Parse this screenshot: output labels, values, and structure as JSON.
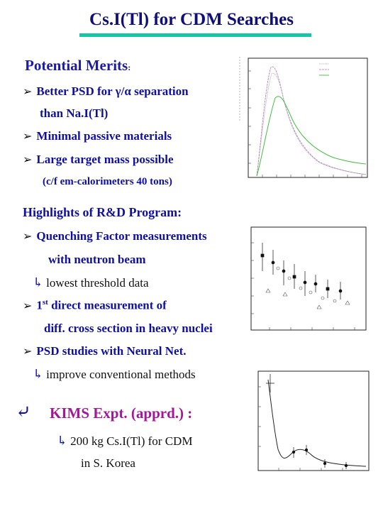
{
  "title": "Cs.I(Tl) for CDM Searches",
  "merits_heading": "Potential Merits",
  "merits_colon": ":",
  "merits": [
    {
      "line1_a": "Better PSD for ",
      "line1_b": "γ/α",
      "line1_c": " separation",
      "line2": "than Na.I(Tl)"
    },
    {
      "line1": "Minimal passive materials"
    },
    {
      "line1": "Large target mass possible",
      "line2": "(c/f  em-calorimeters 40 tons)"
    }
  ],
  "highlights_heading": "Highlights of R&D Program:",
  "highlights": {
    "qf_line1": "Quenching Factor measurements",
    "qf_line2": "with neutron beam",
    "qf_sub": "lowest threshold data",
    "direct_num": "1",
    "direct_sup": "st",
    "direct_line1": " direct measurement of",
    "direct_line2": "diff. cross section in heavy nuclei",
    "psd_line": "PSD studies with Neural Net.",
    "psd_sub": "improve conventional methods"
  },
  "kims": {
    "title": "KIMS Expt. (apprd.) :",
    "sub1": "200 kg Cs.I(Tl) for CDM",
    "sub2": "in S. Korea"
  },
  "colors": {
    "title": "#0f0f7a",
    "bar": "#17c4a6",
    "text": "#1010a0",
    "kims": "#a4169a"
  },
  "icons": {
    "bullet": "arrowhead-icon",
    "sub": "hook-arrow-icon"
  }
}
